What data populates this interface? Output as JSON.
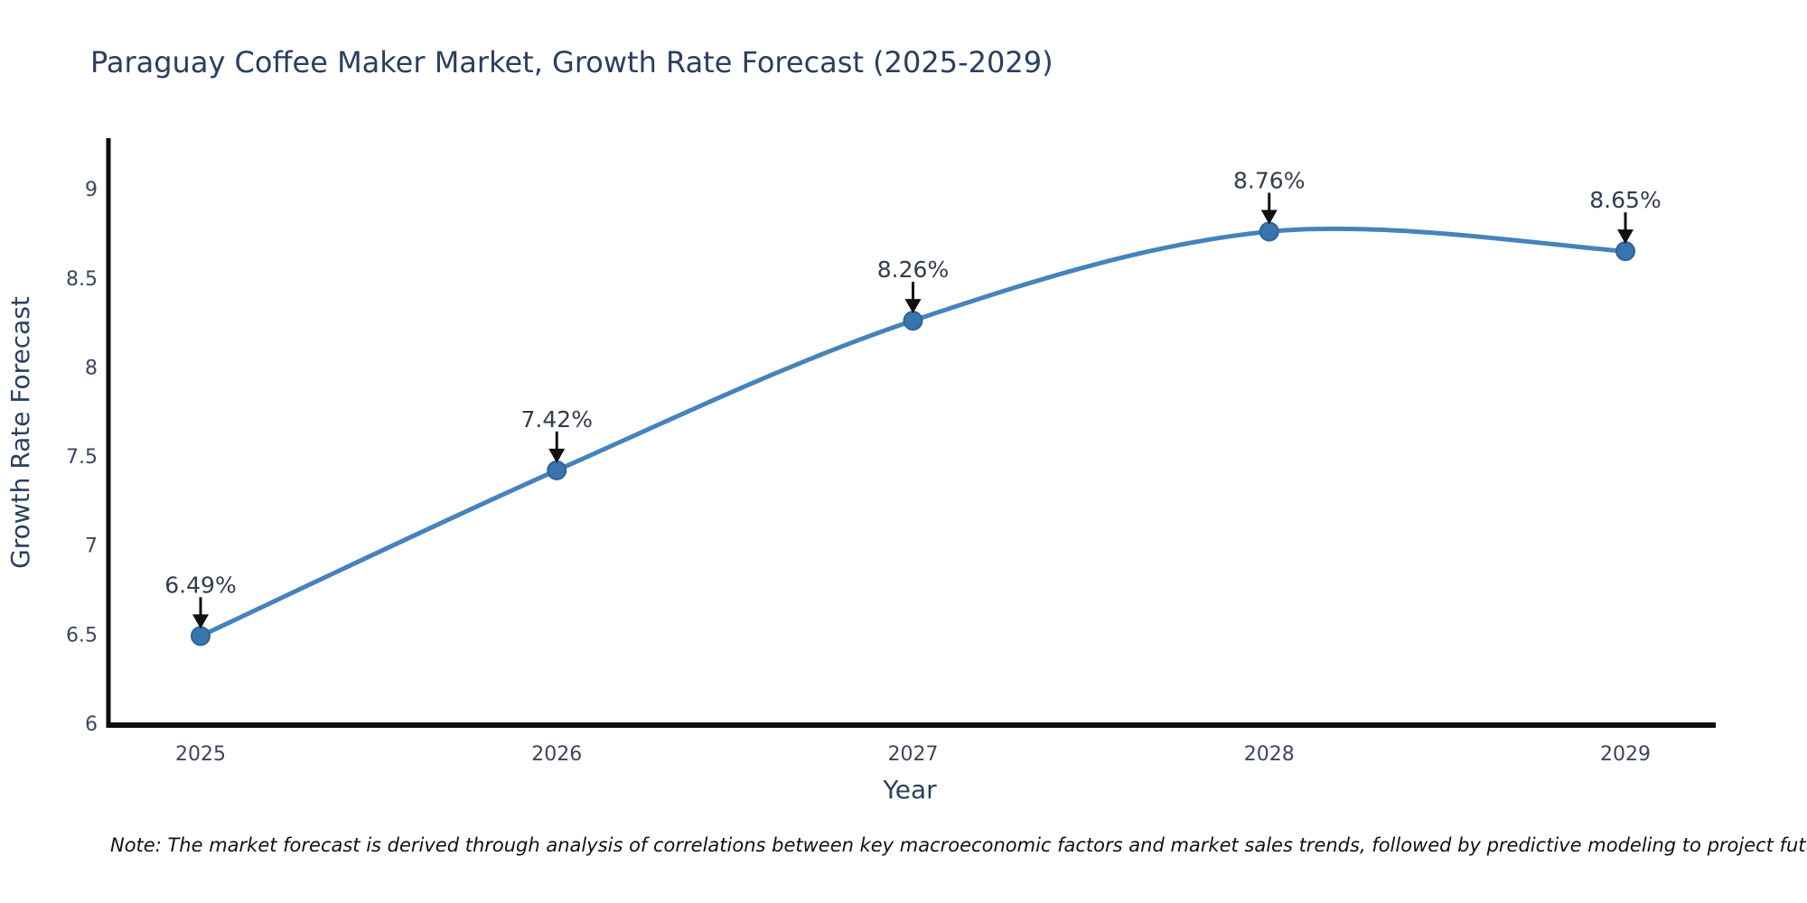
{
  "title": "Paraguay Coffee Maker Market, Growth Rate Forecast (2025-2029)",
  "note": "Note: The market forecast is derived through analysis of correlations between key macroeconomic factors and market sales trends, followed by predictive modeling to project future sales.",
  "colors": {
    "title_text": "#2a3f5f",
    "tick_text": "#3c475c",
    "axis_title_text": "#2a3f5f",
    "axis_line": "#0e0e0e",
    "series_line": "#4583bd",
    "marker_fill": "#3a74ad",
    "marker_edge": "#2f639c",
    "annotation_text": "#333c4c",
    "arrow": "#111111",
    "note_text": "#111111",
    "background": "#ffffff"
  },
  "chart_data": {
    "type": "line",
    "title": "Paraguay Coffee Maker Market, Growth Rate Forecast (2025-2029)",
    "xlabel": "Year",
    "ylabel": "Growth Rate Forecast",
    "x": [
      2025,
      2026,
      2027,
      2028,
      2029
    ],
    "series": [
      {
        "name": "Growth Rate Forecast",
        "values": [
          6.49,
          7.42,
          8.26,
          8.76,
          8.65
        ]
      }
    ],
    "point_labels": [
      "6.49%",
      "7.42%",
      "8.26%",
      "8.76%",
      "8.65%"
    ],
    "ylim": [
      6,
      9
    ],
    "yticks": [
      6,
      6.5,
      7,
      7.5,
      8,
      8.5,
      9
    ],
    "xticks": [
      2025,
      2026,
      2027,
      2028,
      2029
    ],
    "line_shape": "spline",
    "markers": true,
    "grid": false,
    "legend_position": "none",
    "annotation_style": "value label above each point with downward black arrow"
  }
}
